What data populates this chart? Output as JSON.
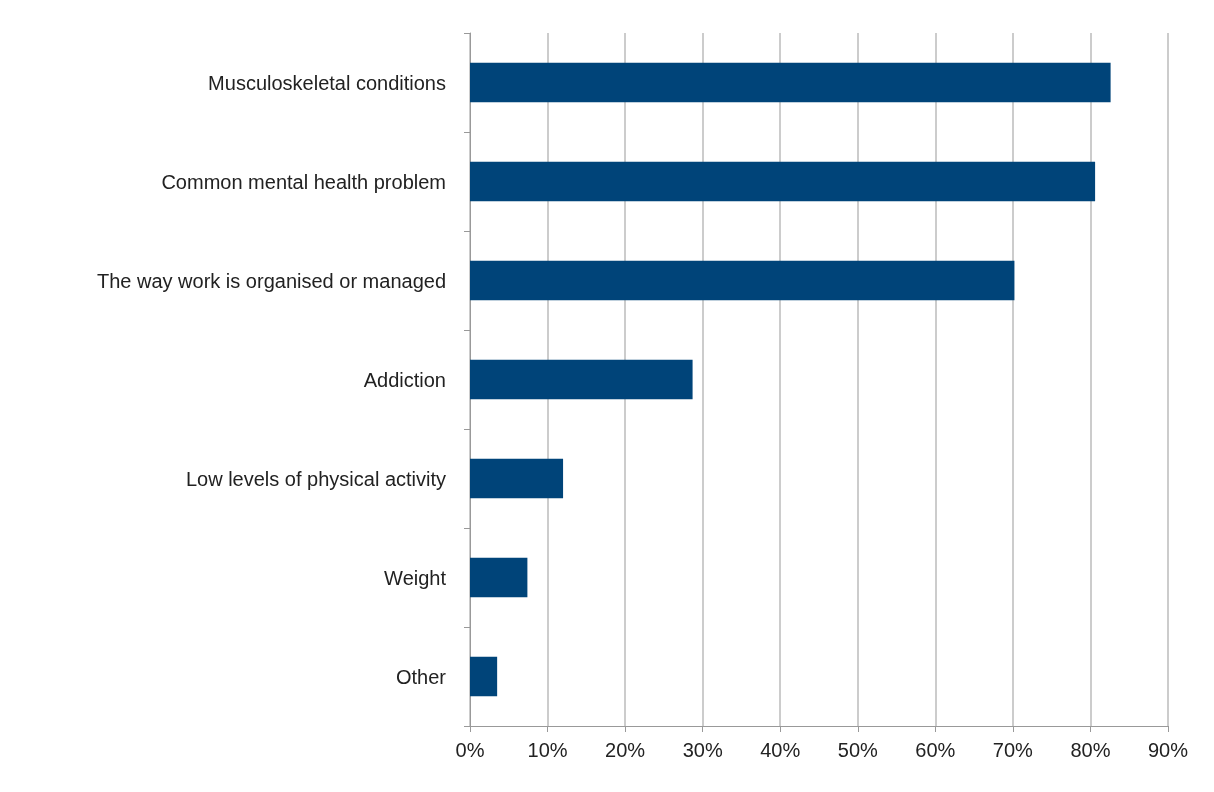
{
  "chart_data": {
    "type": "bar",
    "orientation": "horizontal",
    "categories": [
      "Musculoskeletal conditions",
      "Common mental health problem",
      "The way work is organised or managed",
      "Addiction",
      "Low levels of physical activity",
      "Weight",
      "Other"
    ],
    "values": [
      82.6,
      80.6,
      70.2,
      28.7,
      12.0,
      7.4,
      3.5
    ],
    "color": "#004479",
    "xlim": [
      0,
      90
    ],
    "xticks": [
      {
        "value": 0,
        "label": "0%"
      },
      {
        "value": 10,
        "label": "10%"
      },
      {
        "value": 20,
        "label": "20%"
      },
      {
        "value": 30,
        "label": "30%"
      },
      {
        "value": 40,
        "label": "40%"
      },
      {
        "value": 50,
        "label": "50%"
      },
      {
        "value": 60,
        "label": "60%"
      },
      {
        "value": 70,
        "label": "70%"
      },
      {
        "value": 80,
        "label": "80%"
      },
      {
        "value": 90,
        "label": "90%"
      }
    ],
    "grid": "x"
  }
}
